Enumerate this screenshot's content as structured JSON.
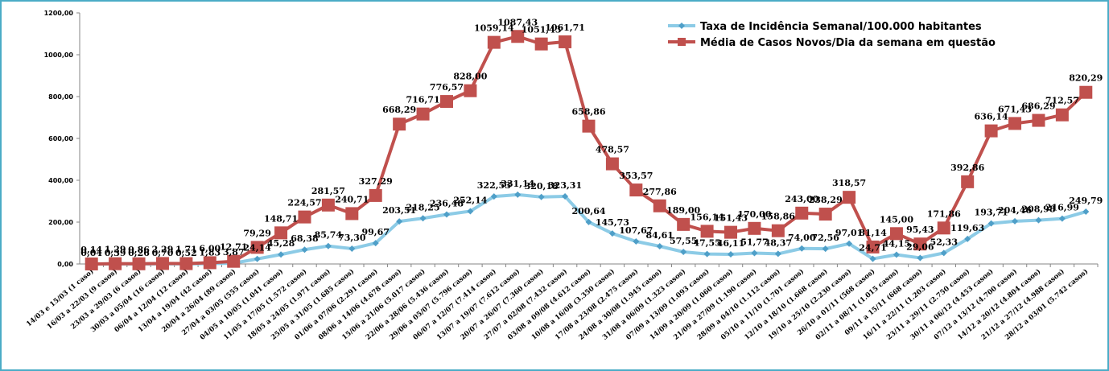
{
  "chart_data": {
    "type": "line",
    "categories": [
      "14/03 e 15/03 (1 caso)",
      "16/03 a 22/03 (9 casos)",
      "23/03 a 29/03 (6 casos)",
      "30/03 a 05/04 (16 casos)",
      "06/04 a 12/04 (12 casos)",
      "13/04 a 19/04 (42 casos)",
      "20/04 a 26/04 (89 casos)",
      "27/04 a 03/05 (555 casos)",
      "04/05 a 10/05 (1.041 casos)",
      "11/05 a 17/05 (1.572 casos)",
      "18/05 a 24/05 (1.971 casos)",
      "25/05 a 31/05 (1.685 casos)",
      "01/06 a 07/06 (2.291 casos)",
      "08/06 a 14/06 (4.678 casos)",
      "15/06 a 21/06 (5.017 casos)",
      "22/06 a 28/06 (5.436 casos)",
      "29/06 a 05/07 (5.796 casos)",
      "06/07 a 12/07 (7.414 casos)",
      "13/07 a 19/07 (7.612 casos)",
      "20/07 a 26/07 (7.360 casos)",
      "27/07 a 02/08 (7.432 casos)",
      "03/08 a 09/08 (4.612 casos)",
      "10/08 a 16/08 (3.350 casos)",
      "17/08 a 23/08 (2.475 casos)",
      "24/08 a 30/08 (1.945 casos)",
      "31/08 a 06/09 (1.323 casos)",
      "07/09 a 13/09 (1.093 casos)",
      "14/09 a 20/09 (1.060 casos)",
      "21/09 a 27/09 (1.190 casos)",
      "28/09 a 04/10 (1.112 casos)",
      "05/10 a 11/10 (1.701 casos)",
      "12/10 a 18/10 (1.668 casos)",
      "19/10 a 25/10 (2.230 casos)",
      "26/10 a 01/11 (568 casos)",
      "02/11 a 08/11 (1.015 casos)",
      "09/11 a 15/11 (668 casos)",
      "16/11 a 22/11 (1.203 casos)",
      "23/11 a 29/11 (2.750 casos)",
      "30/11 a 06/12 (4.453 casos)",
      "07/12 a 13/12 (4.700 casos)",
      "14/12 a 20/12 (4.804 casos)",
      "21/12 a 27/12 (4.988 casos)",
      "28/12 a 03/01 (5.742 casos)"
    ],
    "series": [
      {
        "name": "Taxa de Incidência Semanal/100.000 habitantes",
        "color": "#8ccbe6",
        "marker": "diamond",
        "values": [
          0.04,
          0.39,
          0.26,
          0.7,
          0.52,
          1.83,
          3.87,
          24.14,
          45.28,
          68.38,
          85.74,
          73.3,
          99.67,
          203.51,
          218.25,
          236.48,
          252.14,
          322.53,
          331.14,
          320.18,
          323.31,
          200.64,
          145.73,
          107.67,
          84.61,
          57.55,
          47.55,
          46.11,
          51.77,
          48.37,
          74.0,
          72.56,
          97.01,
          24.71,
          44.15,
          29.06,
          52.33,
          119.63,
          193.71,
          204.46,
          208.98,
          216.99,
          249.79
        ],
        "value_labels": [
          "0,04",
          "0,39",
          "0,26",
          "0,70",
          "0,52",
          "1,83",
          "3,87",
          "24,14",
          "45,28",
          "68,38",
          "85,74",
          "73,30",
          "99,67",
          "203,51",
          "218,25",
          "236,48",
          "252,14",
          "322,53",
          "331,14",
          "320,18",
          "323,31",
          "200,64",
          "145,73",
          "107,67",
          "84,61",
          "57,55",
          "47,55",
          "46,11",
          "51,77",
          "48,37",
          "74,00",
          "72,56",
          "97,01",
          "24,71",
          "44,15",
          "29,06",
          "52,33",
          "119,63",
          "193,71",
          "204,46",
          "208,98",
          "216,99",
          "249,79"
        ]
      },
      {
        "name": "Média de Casos Novos/Dia da semana em questão",
        "color": "#c0504d",
        "marker": "square",
        "values": [
          0.14,
          1.29,
          0.86,
          2.29,
          1.71,
          6.0,
          12.71,
          79.29,
          148.71,
          224.57,
          281.57,
          240.71,
          327.29,
          668.29,
          716.71,
          776.57,
          828.0,
          1059.14,
          1087.43,
          1051.43,
          1061.71,
          658.86,
          478.57,
          353.57,
          277.86,
          189.0,
          156.14,
          151.43,
          170.0,
          158.86,
          243.0,
          238.29,
          318.57,
          81.14,
          145.0,
          95.43,
          171.86,
          392.86,
          636.14,
          671.43,
          686.29,
          712.57,
          820.29
        ],
        "value_labels": [
          "0,14",
          "1,29",
          "0,86",
          "2,29",
          "1,71",
          "6,00",
          "12,71",
          "79,29",
          "148,71",
          "224,57",
          "281,57",
          "240,71",
          "327,29",
          "668,29",
          "716,71",
          "776,57",
          "828,00",
          "1059,14",
          "1087,43",
          "1051,43",
          "1061,71",
          "658,86",
          "478,57",
          "353,57",
          "277,86",
          "189,00",
          "156,14",
          "151,43",
          "170,00",
          "158,86",
          "243,00",
          "238,29",
          "318,57",
          "81,14",
          "145,00",
          "95,43",
          "171,86",
          "392,86",
          "636,14",
          "671,43",
          "686,29",
          "712,57",
          "820,29"
        ]
      }
    ],
    "ylim": [
      0,
      1200
    ],
    "yticks": [
      {
        "value": 0,
        "label": "0,00"
      },
      {
        "value": 200,
        "label": "200,00"
      },
      {
        "value": 400,
        "label": "400,00"
      },
      {
        "value": 600,
        "label": "600,00"
      },
      {
        "value": 800,
        "label": "800,00"
      },
      {
        "value": 1000,
        "label": "1000,00"
      },
      {
        "value": 1200,
        "label": "1200,00"
      }
    ],
    "grid": false,
    "legend": "top-right"
  }
}
